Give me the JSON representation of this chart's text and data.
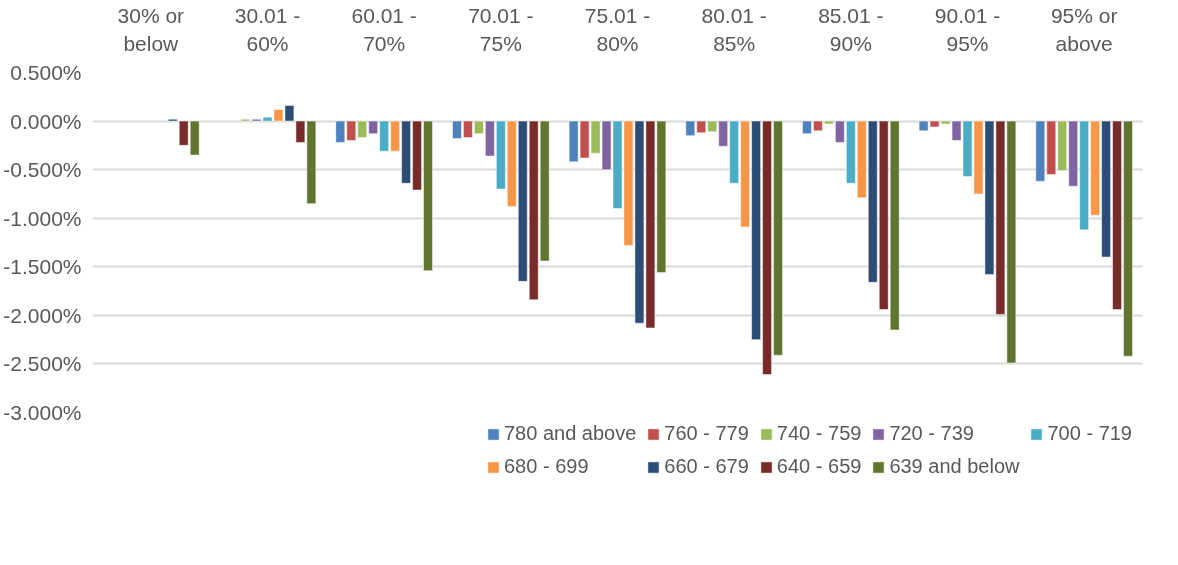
{
  "chart_data": {
    "type": "bar",
    "categories": [
      "30% or\nbelow",
      "30.01 -\n60%",
      "60.01 -\n70%",
      "70.01 -\n75%",
      "75.01 -\n80%",
      "80.01 -\n85%",
      "85.01 -\n90%",
      "90.01 -\n95%",
      "95% or\nabove"
    ],
    "series": [
      {
        "name": "780 and above",
        "color": "#4f81bd",
        "values": [
          null,
          null,
          -0.22,
          -0.18,
          -0.42,
          -0.15,
          -0.13,
          -0.1,
          -0.62
        ]
      },
      {
        "name": "760 - 779",
        "color": "#c0504d",
        "values": [
          null,
          null,
          -0.2,
          -0.17,
          -0.38,
          -0.12,
          -0.1,
          -0.06,
          -0.55
        ]
      },
      {
        "name": "740 - 759",
        "color": "#9bbb59",
        "values": [
          null,
          0.02,
          -0.17,
          -0.13,
          -0.33,
          -0.11,
          -0.03,
          -0.03,
          -0.51
        ]
      },
      {
        "name": "720 - 739",
        "color": "#8064a2",
        "values": [
          null,
          0.02,
          -0.13,
          -0.36,
          -0.5,
          -0.26,
          -0.22,
          -0.2,
          -0.67
        ]
      },
      {
        "name": "700 - 719",
        "color": "#4bacc6",
        "values": [
          null,
          0.04,
          -0.31,
          -0.7,
          -0.9,
          -0.64,
          -0.64,
          -0.57,
          -1.12
        ]
      },
      {
        "name": "680 - 699",
        "color": "#f79646",
        "values": [
          null,
          0.12,
          -0.31,
          -0.88,
          -1.28,
          -1.09,
          -0.79,
          -0.75,
          -0.97
        ]
      },
      {
        "name": "660 - 679",
        "color": "#2c4d75",
        "values": [
          0.02,
          0.16,
          -0.64,
          -1.65,
          -2.08,
          -2.25,
          -1.66,
          -1.58,
          -1.4
        ]
      },
      {
        "name": "640 - 659",
        "color": "#772c2a",
        "values": [
          -0.25,
          -0.22,
          -0.71,
          -1.84,
          -2.13,
          -2.61,
          -1.94,
          -1.99,
          -1.94
        ]
      },
      {
        "name": "639 and below",
        "color": "#5f7530",
        "values": [
          -0.35,
          -0.85,
          -1.54,
          -1.44,
          -1.56,
          -2.41,
          -2.15,
          -2.49,
          -2.42
        ]
      }
    ],
    "ylim": [
      -3.0,
      0.5
    ],
    "yticks": [
      {
        "value": 0.5,
        "label": "0.500%"
      },
      {
        "value": 0.0,
        "label": "0.000%"
      },
      {
        "value": -0.5,
        "label": "-0.500%"
      },
      {
        "value": -1.0,
        "label": "-1.000%"
      },
      {
        "value": -1.5,
        "label": "-1.500%"
      },
      {
        "value": -2.0,
        "label": "-2.000%"
      },
      {
        "value": -2.5,
        "label": "-2.500%"
      },
      {
        "value": -3.0,
        "label": "-3.000%"
      }
    ],
    "grid": "y",
    "legend": "bottom"
  }
}
